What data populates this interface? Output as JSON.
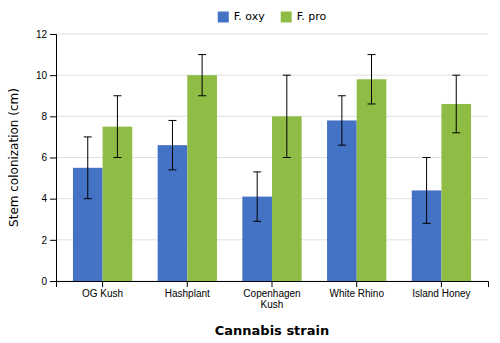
{
  "chart_data": {
    "type": "bar",
    "xlabel": "Cannabis strain",
    "ylabel": "Stem colonization (cm)",
    "categories": [
      "OG Kush",
      "Hashplant",
      "Copenhagen\nKush",
      "White Rhino",
      "Island Honey"
    ],
    "series": [
      {
        "name": "F. oxy",
        "color": "#4472C4",
        "values": [
          5.5,
          6.6,
          4.1,
          7.8,
          4.4
        ],
        "errors": [
          1.5,
          1.2,
          1.2,
          1.2,
          1.6
        ]
      },
      {
        "name": "F. pro",
        "color": "#8FBC45",
        "values": [
          7.5,
          10.0,
          8.0,
          9.8,
          8.6
        ],
        "errors": [
          1.5,
          1.0,
          2.0,
          1.2,
          1.4
        ]
      }
    ],
    "ylim": [
      0,
      12
    ],
    "yticks": [
      0,
      2,
      4,
      6,
      8,
      10,
      12
    ],
    "grid": true,
    "legend": "top"
  }
}
